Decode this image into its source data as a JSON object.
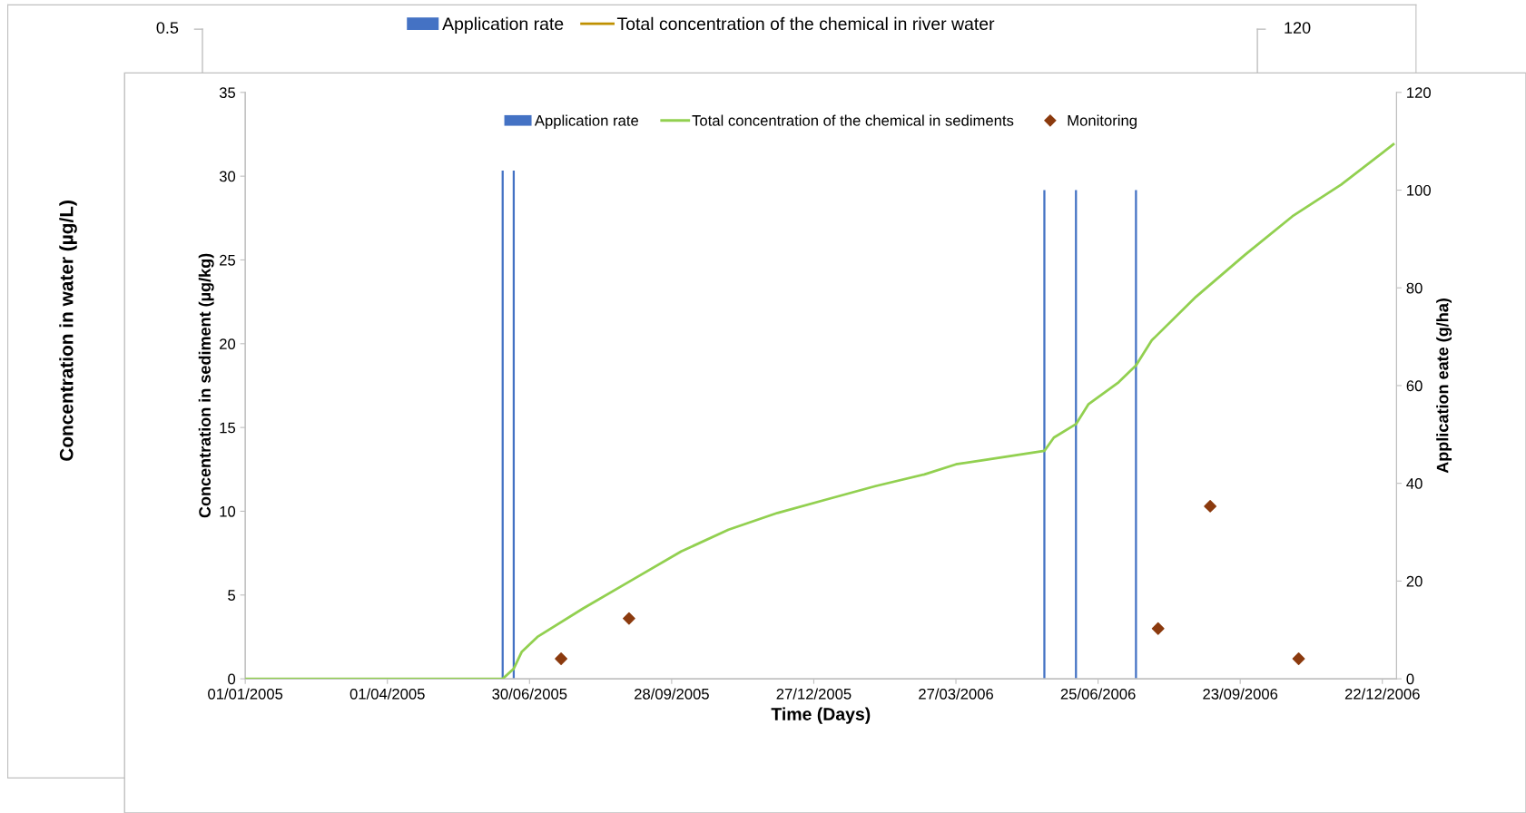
{
  "chart_data": [
    {
      "type": "other",
      "ylabel": "Concentration in water (µg/L)",
      "annotations": [
        "0.5",
        "120"
      ],
      "legend": "top",
      "series": [
        {
          "name": "Application rate",
          "color": "#4472c4",
          "type": "bar"
        },
        {
          "name": "Total concentration of the chemical in river water",
          "color": "#bf9000",
          "type": "line"
        }
      ]
    },
    {
      "type": "line",
      "xlabel": "Time (Days)",
      "ylabel": "Concentration in sediment (µg/kg)",
      "y2label": "Application eate (g/ha)",
      "xlim": [
        "2005-01-01",
        "2006-12-31"
      ],
      "xticks": [
        {
          "value": "2005-01-01",
          "label": "01/01/2005"
        },
        {
          "value": "2005-04-01",
          "label": "01/04/2005"
        },
        {
          "value": "2005-06-30",
          "label": "30/06/2005"
        },
        {
          "value": "2005-09-28",
          "label": "28/09/2005"
        },
        {
          "value": "2005-12-27",
          "label": "27/12/2005"
        },
        {
          "value": "2006-03-27",
          "label": "27/03/2006"
        },
        {
          "value": "2006-06-25",
          "label": "25/06/2006"
        },
        {
          "value": "2006-09-23",
          "label": "23/09/2006"
        },
        {
          "value": "2006-12-22",
          "label": "22/12/2006"
        }
      ],
      "ylim": [
        0,
        35
      ],
      "yticks": [
        0,
        5,
        10,
        15,
        20,
        25,
        30,
        35
      ],
      "y2lim": [
        0,
        120
      ],
      "y2ticks": [
        0,
        20,
        40,
        60,
        80,
        100,
        120
      ],
      "grid": false,
      "legend": "top",
      "series": [
        {
          "name": "Application rate",
          "type": "bar",
          "axis": "y2",
          "color": "#4472c4",
          "x": [
            "2005-06-13",
            "2005-06-20",
            "2006-05-22",
            "2006-06-11",
            "2006-07-19"
          ],
          "values": [
            104,
            104,
            100,
            100,
            100
          ]
        },
        {
          "name": "Total concentration of the chemical in sediments",
          "type": "line",
          "color": "#92d050",
          "marker": "none",
          "x": [
            "2005-01-01",
            "2005-06-13",
            "2005-06-20",
            "2005-06-25",
            "2005-07-05",
            "2005-08-03",
            "2005-09-03",
            "2005-10-04",
            "2005-11-03",
            "2005-12-04",
            "2006-01-04",
            "2006-02-04",
            "2006-03-07",
            "2006-03-27",
            "2006-05-22",
            "2006-05-28",
            "2006-06-11",
            "2006-06-19",
            "2006-07-08",
            "2006-07-19",
            "2006-07-29",
            "2006-08-26",
            "2006-09-26",
            "2006-10-26",
            "2006-11-26",
            "2006-12-29"
          ],
          "values": [
            0,
            0,
            0.6,
            1.6,
            2.5,
            4.2,
            5.9,
            7.6,
            8.9,
            9.9,
            10.7,
            11.5,
            12.2,
            12.8,
            13.6,
            14.4,
            15.2,
            16.4,
            17.7,
            18.7,
            20.2,
            22.8,
            25.3,
            27.6,
            29.5,
            31.9
          ]
        },
        {
          "name": "Monitoring",
          "type": "scatter",
          "color": "#8b3a0e",
          "marker": "diamond",
          "x": [
            "2005-07-20",
            "2005-09-01",
            "2006-08-02",
            "2006-09-04",
            "2006-10-30"
          ],
          "values": [
            1.2,
            3.6,
            3.0,
            10.3,
            1.2
          ]
        }
      ]
    }
  ]
}
